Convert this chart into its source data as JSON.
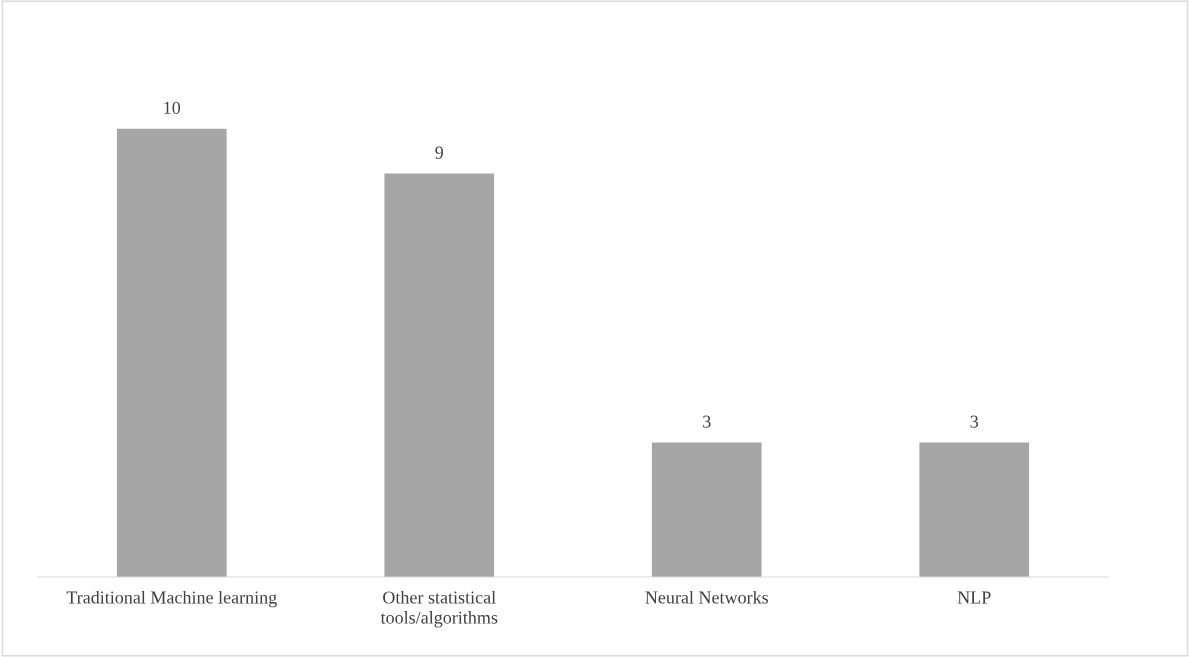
{
  "chart_data": {
    "type": "bar",
    "categories": [
      "Traditional Machine learning",
      "Other statistical\ntools/algorithms",
      "Neural Networks",
      "NLP"
    ],
    "values": [
      10,
      9,
      3,
      3
    ],
    "color": "#a6a6a6",
    "data_labels": true,
    "grid": false,
    "legend": false
  }
}
